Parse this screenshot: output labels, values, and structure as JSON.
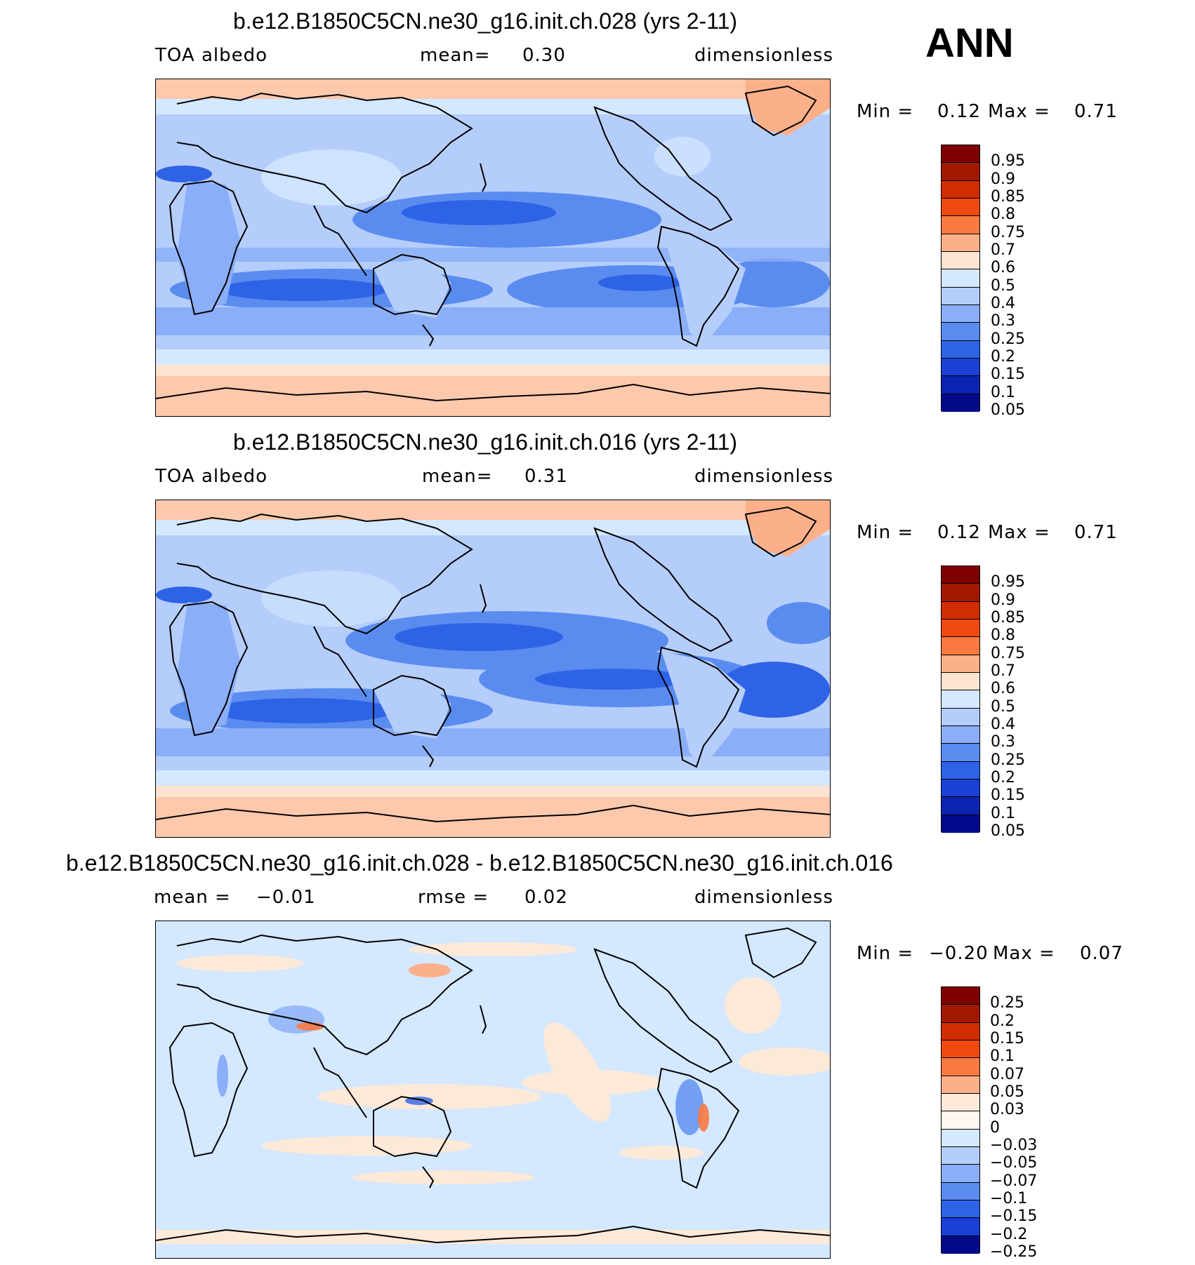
{
  "season": "ANN",
  "panels": [
    {
      "title": "b.e12.B1850C5CN.ne30_g16.init.ch.028 (yrs 2-11)",
      "left_label": "TOA albedo",
      "center_label": "mean=",
      "center_value": "0.30",
      "right_label": "dimensionless",
      "min_label": "Min =",
      "min_value": "0.12",
      "max_label": "Max =",
      "max_value": "0.71",
      "palette": "abs",
      "colorbar_labels": [
        "0.95",
        "0.9",
        "0.85",
        "0.8",
        "0.75",
        "0.7",
        "0.6",
        "0.5",
        "0.4",
        "0.3",
        "0.25",
        "0.2",
        "0.15",
        "0.1",
        "0.05"
      ]
    },
    {
      "title": "b.e12.B1850C5CN.ne30_g16.init.ch.016 (yrs 2-11)",
      "left_label": "TOA albedo",
      "center_label": "mean=",
      "center_value": "0.31",
      "right_label": "dimensionless",
      "min_label": "Min =",
      "min_value": "0.12",
      "max_label": "Max =",
      "max_value": "0.71",
      "palette": "abs",
      "colorbar_labels": [
        "0.95",
        "0.9",
        "0.85",
        "0.8",
        "0.75",
        "0.7",
        "0.6",
        "0.5",
        "0.4",
        "0.3",
        "0.25",
        "0.2",
        "0.15",
        "0.1",
        "0.05"
      ]
    },
    {
      "title": "b.e12.B1850C5CN.ne30_g16.init.ch.028 - b.e12.B1850C5CN.ne30_g16.init.ch.016",
      "left_label": "mean =",
      "left_value": "−0.01",
      "center_label": "rmse =",
      "center_value": "0.02",
      "right_label": "dimensionless",
      "min_label": "Min =",
      "min_value": "−0.20",
      "max_label": "Max =",
      "max_value": "0.07",
      "palette": "diff",
      "colorbar_labels": [
        "0.25",
        "0.2",
        "0.15",
        "0.1",
        "0.07",
        "0.05",
        "0.03",
        "0",
        "−0.03",
        "−0.05",
        "−0.07",
        "−0.1",
        "−0.15",
        "−0.2",
        "−0.25"
      ]
    }
  ],
  "colors": {
    "abs_swatches": [
      "#7f0000",
      "#a11a00",
      "#d02d00",
      "#f04a10",
      "#f97a40",
      "#fcb08a",
      "#fde3d0",
      "#d4e8ff",
      "#b5cdfb",
      "#8aaef7",
      "#5a8cf0",
      "#2f63e6",
      "#1a40d6",
      "#0a23b0",
      "#020a8a"
    ],
    "diff_swatches": [
      "#7f0000",
      "#a11a00",
      "#d02d00",
      "#f04a10",
      "#f97a40",
      "#fcb08a",
      "#fde9d8",
      "#fff6ee",
      "#d4e8ff",
      "#b5cdfb",
      "#8aaef7",
      "#5a8cf0",
      "#2f63e6",
      "#1a40d6",
      "#020a8a"
    ]
  }
}
